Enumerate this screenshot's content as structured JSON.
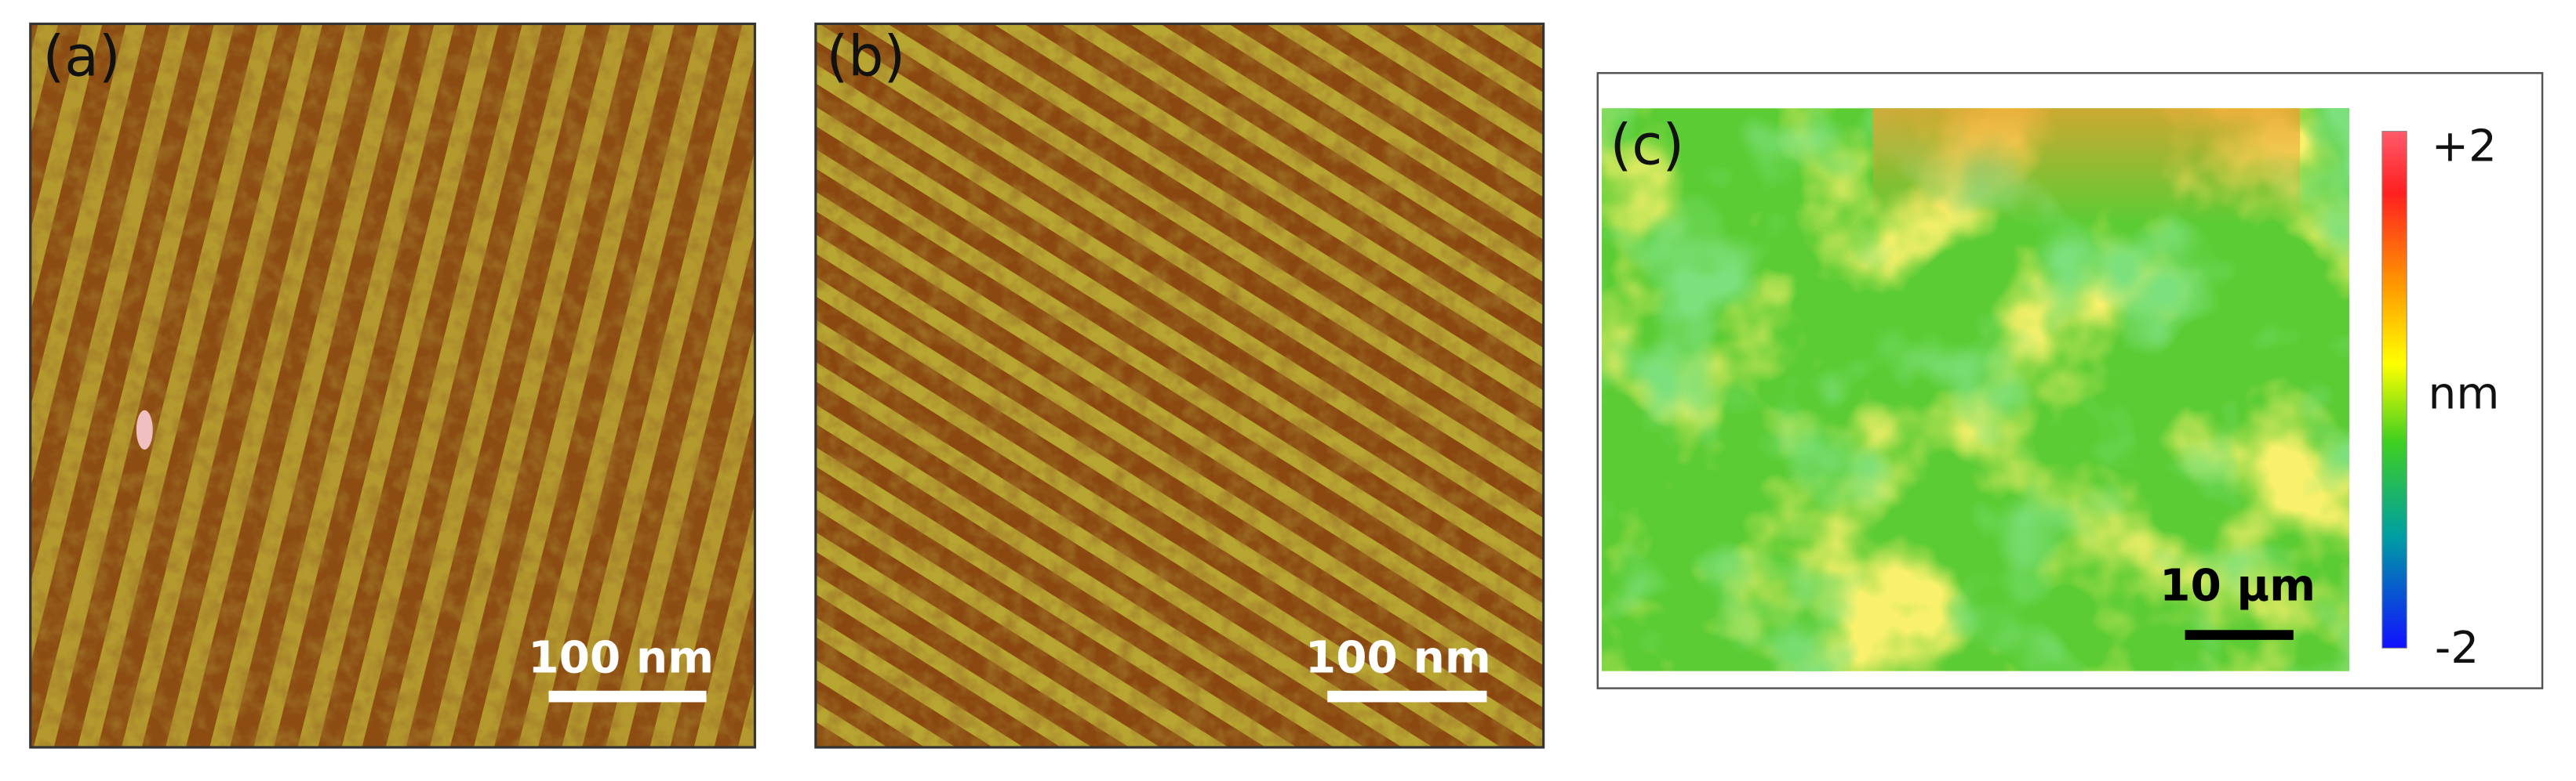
{
  "panels": [
    {
      "label": "(a)",
      "scale_bar": "100 nm"
    },
    {
      "label": "(b)",
      "scale_bar": "100 nm"
    },
    {
      "label": "(c)",
      "scale_bar": "10 µm",
      "colorbar": {
        "max_label": "+2",
        "unit": "nm",
        "min_label": "-2"
      }
    }
  ]
}
